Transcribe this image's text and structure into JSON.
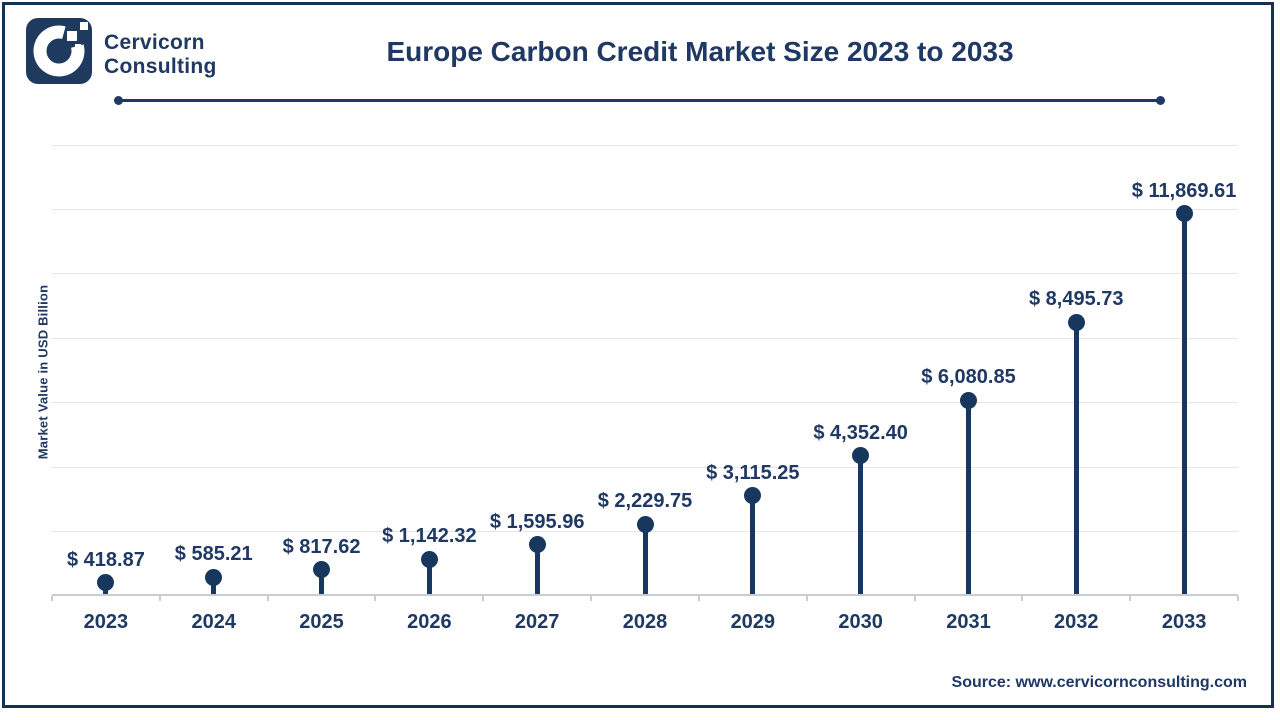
{
  "header": {
    "logo_line1": "Cervicorn",
    "logo_line2": "Consulting",
    "title": "Europe Carbon Credit Market Size 2023 to 2033"
  },
  "chart_data": {
    "type": "bar",
    "style": "lollipop",
    "title": "Europe Carbon Credit Market Size 2023 to 2033",
    "categories": [
      "2023",
      "2024",
      "2025",
      "2026",
      "2027",
      "2028",
      "2029",
      "2030",
      "2031",
      "2032",
      "2033"
    ],
    "values": [
      418.87,
      585.21,
      817.62,
      1142.32,
      1595.96,
      2229.75,
      3115.25,
      4352.4,
      6080.85,
      8495.73,
      11869.61
    ],
    "value_labels": [
      "$ 418.87",
      "$ 585.21",
      "$ 817.62",
      "$ 1,142.32",
      "$ 1,595.96",
      "$ 2,229.75",
      "$ 3,115.25",
      "$ 4,352.40",
      "$ 6,080.85",
      "$ 8,495.73",
      "$ 11,869.61"
    ],
    "xlabel": "",
    "ylabel": "Market Value in USD Billion",
    "ylim": [
      0,
      14000
    ],
    "grid_step": 2000,
    "grid": true,
    "legend": "none",
    "currency": "USD Billion"
  },
  "footer": {
    "source": "Source: www.cervicornconsulting.com"
  },
  "colors": {
    "navy": "#17375E",
    "text_navy": "#1F3864",
    "gridline": "#e4e5e9",
    "axis": "#c9ccd1",
    "background": "#ffffff"
  }
}
